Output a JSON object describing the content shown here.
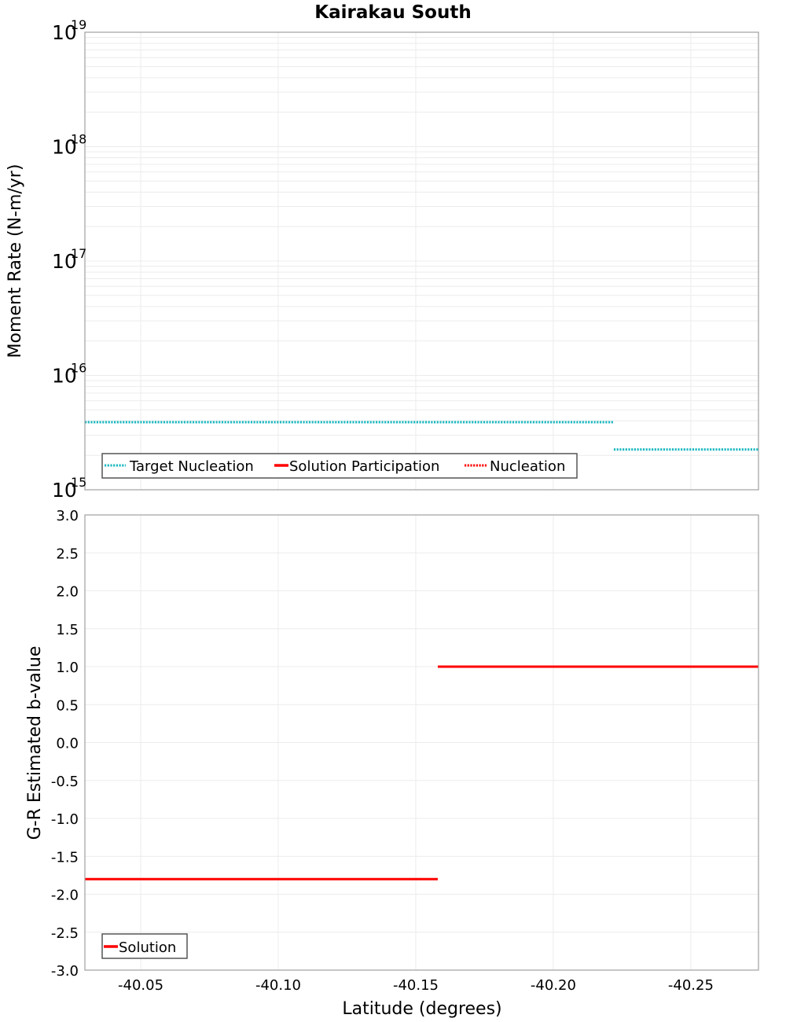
{
  "title": "Kairakau South",
  "colors": {
    "target_nucleation": "#1cb8c0",
    "solution": "#ff0000",
    "nucleation": "#ff0000",
    "grid": "#ececec",
    "frame": "#a0a0a0"
  },
  "chart_data": [
    {
      "type": "line",
      "title": "Kairakau South",
      "xlabel": "Latitude (degrees)",
      "ylabel": "Moment Rate (N-m/yr)",
      "yscale": "log",
      "ylim": [
        1000000000000000.0,
        1e+19
      ],
      "xlim": [
        -40.0297,
        -40.2746
      ],
      "x_inverted": true,
      "y_ticks": [
        {
          "base": "10",
          "exp": "19",
          "value": 1e+19
        },
        {
          "base": "10",
          "exp": "18",
          "value": 1e+18
        },
        {
          "base": "10",
          "exp": "17",
          "value": 1e+17
        },
        {
          "base": "10",
          "exp": "16",
          "value": 1e+16
        },
        {
          "base": "10",
          "exp": "15",
          "value": 1000000000000000.0
        }
      ],
      "grid": true,
      "legend_position": "lower-left",
      "legend": [
        {
          "label": "Target Nucleation",
          "style": "dotted",
          "color": "#1cb8c0"
        },
        {
          "label": "Solution Participation",
          "style": "solid",
          "color": "#ff0000"
        },
        {
          "label": "Nucleation",
          "style": "dotted",
          "color": "#ff0000"
        }
      ],
      "series": [
        {
          "name": "Target Nucleation",
          "style": "dotted",
          "color": "#1cb8c0",
          "segments": [
            {
              "x": [
                -40.0297,
                -40.222
              ],
              "y": [
                3900000000000000.0,
                3900000000000000.0
              ]
            },
            {
              "x": [
                -40.222,
                -40.2746
              ],
              "y": [
                2250000000000000.0,
                2250000000000000.0
              ]
            }
          ]
        },
        {
          "name": "Solution Participation",
          "style": "solid",
          "color": "#ff0000",
          "segments": []
        },
        {
          "name": "Nucleation",
          "style": "dotted",
          "color": "#ff0000",
          "segments": []
        }
      ]
    },
    {
      "type": "line",
      "xlabel": "Latitude (degrees)",
      "ylabel": "G-R Estimated b-value",
      "ylim": [
        -3.0,
        3.0
      ],
      "xlim": [
        -40.0297,
        -40.2746
      ],
      "x_inverted": true,
      "x_ticks": [
        "-40.05",
        "-40.10",
        "-40.15",
        "-40.20",
        "-40.25"
      ],
      "x_tick_values": [
        -40.05,
        -40.1,
        -40.15,
        -40.2,
        -40.25
      ],
      "y_ticks": [
        "3.0",
        "2.5",
        "2.0",
        "1.5",
        "1.0",
        "0.5",
        "0.0",
        "-0.5",
        "-1.0",
        "-1.5",
        "-2.0",
        "-2.5",
        "-3.0"
      ],
      "grid": true,
      "legend_position": "lower-left",
      "legend": [
        {
          "label": "Solution",
          "style": "solid",
          "color": "#ff0000"
        }
      ],
      "series": [
        {
          "name": "Solution",
          "style": "solid",
          "color": "#ff0000",
          "segments": [
            {
              "x": [
                -40.0297,
                -40.158
              ],
              "y": [
                -1.8,
                -1.8
              ]
            },
            {
              "x": [
                -40.158,
                -40.2746
              ],
              "y": [
                1.0,
                1.0
              ]
            }
          ]
        }
      ]
    }
  ]
}
